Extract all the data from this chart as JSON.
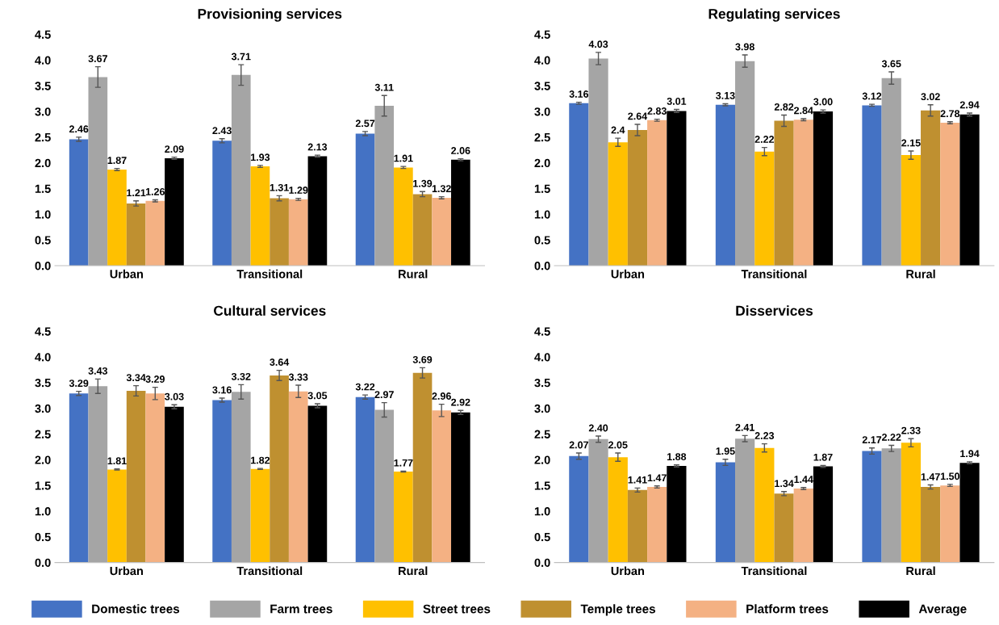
{
  "chart_data": [
    {
      "type": "bar",
      "title": "Provisioning services",
      "categories": [
        "Urban",
        "Transitional",
        "Rural"
      ],
      "ylim": [
        0,
        4.5
      ],
      "yticks": [
        {
          "value": 0,
          "label": "0.0"
        },
        0.5,
        {
          "value": 1,
          "label": "1.0"
        },
        1.5,
        {
          "value": 2,
          "label": "2.0"
        },
        2.5,
        {
          "value": 3,
          "label": "3.0"
        },
        3.5,
        {
          "value": 4,
          "label": "4.0"
        },
        4.5
      ],
      "grid": false,
      "legend": "bottom",
      "series": [
        {
          "name": "Domestic trees",
          "color": "#4472c4",
          "values": [
            2.46,
            2.43,
            2.57
          ],
          "value_labels": [
            "2.46",
            "2.43",
            "2.57"
          ],
          "errors": [
            0.04,
            0.04,
            0.04
          ]
        },
        {
          "name": "Farm trees",
          "color": "#a5a5a5",
          "values": [
            3.67,
            3.71,
            3.11
          ],
          "value_labels": [
            "3.67",
            "3.71",
            "3.11"
          ],
          "errors": [
            0.2,
            0.2,
            0.2
          ]
        },
        {
          "name": "Street trees",
          "color": "#ffc000",
          "values": [
            1.87,
            1.93,
            1.91
          ],
          "value_labels": [
            "1.87",
            "1.93",
            "1.91"
          ],
          "errors": [
            0.02,
            0.02,
            0.02
          ]
        },
        {
          "name": "Temple trees",
          "color": "#bf9030",
          "values": [
            1.21,
            1.31,
            1.39
          ],
          "value_labels": [
            "1.21",
            "1.31",
            "1.39"
          ],
          "errors": [
            0.05,
            0.05,
            0.05
          ]
        },
        {
          "name": "Platform trees",
          "color": "#f4b183",
          "values": [
            1.26,
            1.29,
            1.32
          ],
          "value_labels": [
            "1.26",
            "1.29",
            "1.32"
          ],
          "errors": [
            0.02,
            0.02,
            0.02
          ]
        },
        {
          "name": "Average",
          "color": "#000000",
          "values": [
            2.09,
            2.13,
            2.06
          ],
          "value_labels": [
            "2.09",
            "2.13",
            "2.06"
          ],
          "errors": [
            0.02,
            0.02,
            0.02
          ]
        }
      ]
    },
    {
      "type": "bar",
      "title": "Regulating services",
      "categories": [
        "Urban",
        "Transitional",
        "Rural"
      ],
      "ylim": [
        0,
        4.5
      ],
      "yticks": [
        {
          "value": 0,
          "label": "0.0"
        },
        0.5,
        {
          "value": 1,
          "label": "1.0"
        },
        1.5,
        {
          "value": 2,
          "label": "2.0"
        },
        2.5,
        {
          "value": 3,
          "label": "3.0"
        },
        3.5,
        {
          "value": 4,
          "label": "4.0"
        },
        4.5
      ],
      "grid": false,
      "series": [
        {
          "color": "#4472c4",
          "values": [
            3.16,
            3.13,
            3.12
          ],
          "value_labels": [
            "3.16",
            "3.13",
            "3.12"
          ],
          "errors": [
            0.02,
            0.02,
            0.02
          ]
        },
        {
          "color": "#a5a5a5",
          "values": [
            4.03,
            3.98,
            3.65
          ],
          "value_labels": [
            "4.03",
            "3.98",
            "3.65"
          ],
          "errors": [
            0.12,
            0.12,
            0.12
          ]
        },
        {
          "color": "#ffc000",
          "values": [
            2.4,
            2.22,
            2.15
          ],
          "value_labels": [
            "2.4",
            "2.22",
            "2.15"
          ],
          "errors": [
            0.08,
            0.08,
            0.08
          ]
        },
        {
          "color": "#bf9030",
          "values": [
            2.64,
            2.82,
            3.02
          ],
          "value_labels": [
            "2.64",
            "2.82",
            "3.02"
          ],
          "errors": [
            0.11,
            0.11,
            0.11
          ]
        },
        {
          "color": "#f4b183",
          "values": [
            2.83,
            2.84,
            2.78
          ],
          "value_labels": [
            "2.83",
            "2.84",
            "2.78"
          ],
          "errors": [
            0.02,
            0.02,
            0.02
          ]
        },
        {
          "color": "#000000",
          "values": [
            3.01,
            3.0,
            2.94
          ],
          "value_labels": [
            "3.01",
            "3.00",
            "2.94"
          ],
          "errors": [
            0.03,
            0.03,
            0.03
          ]
        }
      ]
    },
    {
      "type": "bar",
      "title": "Cultural services",
      "categories": [
        "Urban",
        "Transitional",
        "Rural"
      ],
      "ylim": [
        0,
        4.5
      ],
      "yticks": [
        {
          "value": 0,
          "label": "0.0"
        },
        0.5,
        {
          "value": 1,
          "label": "1.0"
        },
        1.5,
        {
          "value": 2,
          "label": "2.0"
        },
        2.5,
        {
          "value": 3,
          "label": "3.0"
        },
        3.5,
        {
          "value": 4,
          "label": "4.0"
        },
        4.5
      ],
      "grid": false,
      "series": [
        {
          "color": "#4472c4",
          "values": [
            3.29,
            3.16,
            3.22
          ],
          "value_labels": [
            "3.29",
            "3.16",
            "3.22"
          ],
          "errors": [
            0.04,
            0.04,
            0.04
          ]
        },
        {
          "color": "#a5a5a5",
          "values": [
            3.43,
            3.32,
            2.97
          ],
          "value_labels": [
            "3.43",
            "3.32",
            "2.97"
          ],
          "errors": [
            0.14,
            0.14,
            0.14
          ]
        },
        {
          "color": "#ffc000",
          "values": [
            1.81,
            1.82,
            1.77
          ],
          "value_labels": [
            "1.81",
            "1.82",
            "1.77"
          ],
          "errors": [
            0.01,
            0.01,
            0.01
          ]
        },
        {
          "color": "#bf9030",
          "values": [
            3.34,
            3.64,
            3.69
          ],
          "value_labels": [
            "3.34",
            "3.64",
            "3.69"
          ],
          "errors": [
            0.1,
            0.1,
            0.1
          ]
        },
        {
          "color": "#f4b183",
          "values": [
            3.29,
            3.33,
            2.96
          ],
          "value_labels": [
            "3.29",
            "3.33",
            "2.96"
          ],
          "errors": [
            0.12,
            0.12,
            0.12
          ]
        },
        {
          "color": "#000000",
          "values": [
            3.03,
            3.05,
            2.92
          ],
          "value_labels": [
            "3.03",
            "3.05",
            "2.92"
          ],
          "errors": [
            0.04,
            0.04,
            0.04
          ]
        }
      ]
    },
    {
      "type": "bar",
      "title": "Disservices",
      "categories": [
        "Urban",
        "Transitional",
        "Rural"
      ],
      "ylim": [
        0,
        4.5
      ],
      "yticks": [
        {
          "value": 0,
          "label": "0.0"
        },
        0.5,
        {
          "value": 1,
          "label": "1.0"
        },
        1.5,
        {
          "value": 2,
          "label": "2.0"
        },
        2.5,
        {
          "value": 3,
          "label": "3.0"
        },
        3.5,
        {
          "value": 4,
          "label": "4.0"
        },
        4.5
      ],
      "grid": false,
      "series": [
        {
          "color": "#4472c4",
          "values": [
            2.07,
            1.95,
            2.17
          ],
          "value_labels": [
            "2.07",
            "1.95",
            "2.17"
          ],
          "errors": [
            0.06,
            0.06,
            0.06
          ]
        },
        {
          "color": "#a5a5a5",
          "values": [
            2.4,
            2.41,
            2.22
          ],
          "value_labels": [
            "2.40",
            "2.41",
            "2.22"
          ],
          "errors": [
            0.06,
            0.06,
            0.06
          ]
        },
        {
          "color": "#ffc000",
          "values": [
            2.05,
            2.23,
            2.33
          ],
          "value_labels": [
            "2.05",
            "2.23",
            "2.33"
          ],
          "errors": [
            0.08,
            0.08,
            0.08
          ]
        },
        {
          "color": "#bf9030",
          "values": [
            1.41,
            1.34,
            1.47
          ],
          "value_labels": [
            "1.41",
            "1.34",
            "1.47"
          ],
          "errors": [
            0.04,
            0.04,
            0.04
          ]
        },
        {
          "color": "#f4b183",
          "values": [
            1.47,
            1.44,
            1.5
          ],
          "value_labels": [
            "1.47",
            "1.44",
            "1.50"
          ],
          "errors": [
            0.02,
            0.02,
            0.02
          ]
        },
        {
          "color": "#000000",
          "values": [
            1.88,
            1.87,
            1.94
          ],
          "value_labels": [
            "1.88",
            "1.87",
            "1.94"
          ],
          "errors": [
            0.02,
            0.02,
            0.02
          ]
        }
      ]
    }
  ]
}
